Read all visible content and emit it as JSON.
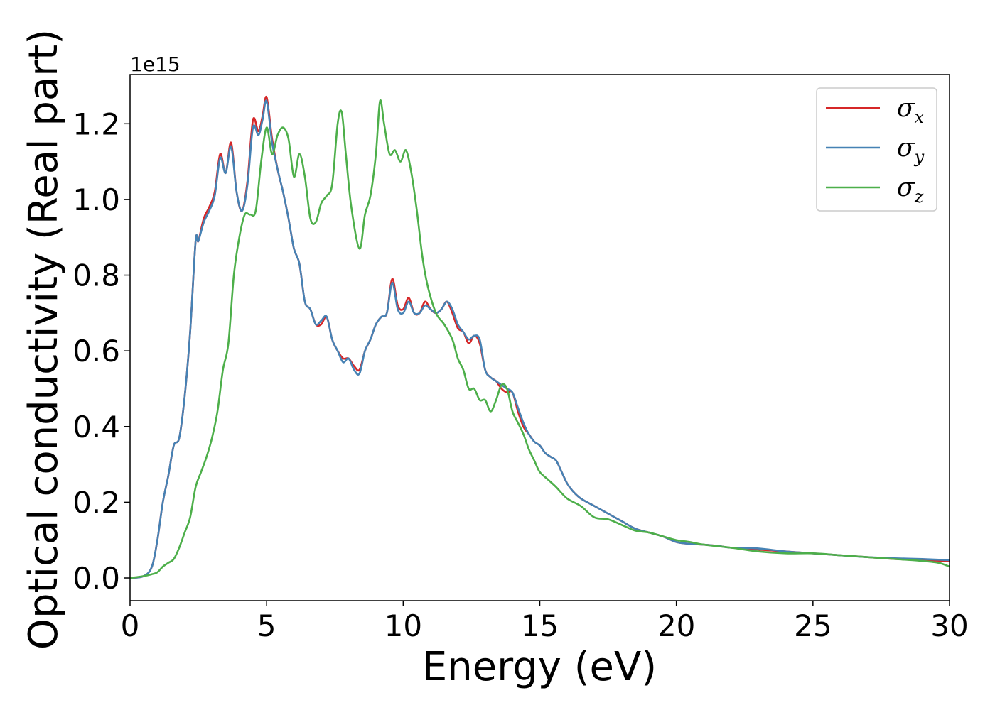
{
  "chart_data": {
    "type": "line",
    "title": "",
    "xlabel": "Energy (eV)",
    "ylabel": "Optical conductivity (Real part)",
    "y_offset_text": "1e15",
    "xlim": [
      0,
      30
    ],
    "ylim": [
      -0.06,
      1.33
    ],
    "x_ticks": [
      0,
      5,
      10,
      15,
      20,
      25,
      30
    ],
    "x_tick_labels": [
      "0",
      "5",
      "10",
      "15",
      "20",
      "25",
      "30"
    ],
    "y_ticks": [
      0.0,
      0.2,
      0.4,
      0.6,
      0.8,
      1.0,
      1.2
    ],
    "y_tick_labels": [
      "0.0",
      "0.2",
      "0.4",
      "0.6",
      "0.8",
      "1.0",
      "1.2"
    ],
    "grid": false,
    "legend_position": "top-right",
    "series": [
      {
        "name": "σx",
        "symbol": "σ",
        "subscript": "x",
        "color": "#d62728",
        "x": [
          0,
          0.5,
          0.8,
          1.0,
          1.2,
          1.4,
          1.6,
          1.8,
          2.0,
          2.2,
          2.4,
          2.5,
          2.7,
          2.9,
          3.1,
          3.3,
          3.5,
          3.7,
          3.9,
          4.1,
          4.3,
          4.5,
          4.7,
          4.85,
          5.0,
          5.2,
          5.4,
          5.6,
          5.8,
          6.0,
          6.2,
          6.4,
          6.6,
          6.8,
          7.0,
          7.2,
          7.4,
          7.6,
          7.8,
          8.0,
          8.2,
          8.4,
          8.6,
          8.8,
          9.0,
          9.2,
          9.4,
          9.6,
          9.8,
          10.0,
          10.2,
          10.4,
          10.6,
          10.8,
          11.0,
          11.2,
          11.4,
          11.6,
          11.8,
          12.0,
          12.2,
          12.4,
          12.6,
          12.8,
          13.0,
          13.2,
          13.4,
          13.6,
          13.8,
          14.0,
          14.2,
          14.4,
          14.6,
          14.8,
          15.0,
          15.2,
          15.4,
          15.6,
          15.8,
          16.0,
          16.2,
          16.5,
          17.0,
          17.5,
          18.0,
          18.5,
          19.0,
          19.5,
          20.0,
          20.5,
          21.0,
          21.5,
          22.0,
          23.0,
          24.0,
          25.0,
          26.0,
          27.0,
          28.0,
          29.0,
          30.0
        ],
        "y": [
          0,
          0.005,
          0.03,
          0.1,
          0.2,
          0.27,
          0.35,
          0.37,
          0.48,
          0.65,
          0.89,
          0.89,
          0.95,
          0.98,
          1.02,
          1.12,
          1.07,
          1.15,
          1.02,
          0.97,
          1.05,
          1.21,
          1.18,
          1.22,
          1.27,
          1.16,
          1.08,
          1.02,
          0.95,
          0.87,
          0.83,
          0.73,
          0.71,
          0.67,
          0.67,
          0.69,
          0.63,
          0.6,
          0.58,
          0.58,
          0.56,
          0.55,
          0.6,
          0.63,
          0.67,
          0.69,
          0.7,
          0.79,
          0.72,
          0.71,
          0.74,
          0.7,
          0.7,
          0.73,
          0.71,
          0.7,
          0.71,
          0.73,
          0.7,
          0.66,
          0.65,
          0.62,
          0.64,
          0.62,
          0.55,
          0.53,
          0.52,
          0.5,
          0.49,
          0.49,
          0.44,
          0.4,
          0.38,
          0.36,
          0.35,
          0.33,
          0.32,
          0.31,
          0.28,
          0.25,
          0.23,
          0.21,
          0.19,
          0.17,
          0.15,
          0.13,
          0.12,
          0.11,
          0.095,
          0.09,
          0.088,
          0.085,
          0.08,
          0.075,
          0.07,
          0.065,
          0.06,
          0.055,
          0.05,
          0.047,
          0.045
        ]
      },
      {
        "name": "σy",
        "symbol": "σ",
        "subscript": "y",
        "color": "#4682b4",
        "x": [
          0,
          0.5,
          0.8,
          1.0,
          1.2,
          1.4,
          1.6,
          1.8,
          2.0,
          2.2,
          2.4,
          2.5,
          2.7,
          2.9,
          3.1,
          3.3,
          3.5,
          3.7,
          3.9,
          4.1,
          4.3,
          4.5,
          4.7,
          4.85,
          5.0,
          5.2,
          5.4,
          5.6,
          5.8,
          6.0,
          6.2,
          6.4,
          6.6,
          6.8,
          7.0,
          7.2,
          7.4,
          7.6,
          7.8,
          8.0,
          8.2,
          8.4,
          8.6,
          8.8,
          9.0,
          9.2,
          9.4,
          9.6,
          9.8,
          10.0,
          10.2,
          10.4,
          10.6,
          10.8,
          11.0,
          11.2,
          11.4,
          11.6,
          11.8,
          12.0,
          12.2,
          12.4,
          12.6,
          12.8,
          13.0,
          13.2,
          13.4,
          13.6,
          13.8,
          14.0,
          14.2,
          14.4,
          14.6,
          14.8,
          15.0,
          15.2,
          15.4,
          15.6,
          15.8,
          16.0,
          16.2,
          16.5,
          17.0,
          17.5,
          18.0,
          18.5,
          19.0,
          19.5,
          20.0,
          20.5,
          21.0,
          21.5,
          22.0,
          23.0,
          24.0,
          25.0,
          26.0,
          27.0,
          28.0,
          29.0,
          30.0
        ],
        "y": [
          0,
          0.005,
          0.03,
          0.1,
          0.2,
          0.27,
          0.35,
          0.37,
          0.48,
          0.65,
          0.89,
          0.89,
          0.94,
          0.97,
          1.01,
          1.11,
          1.07,
          1.14,
          1.02,
          0.97,
          1.04,
          1.19,
          1.17,
          1.21,
          1.26,
          1.15,
          1.08,
          1.02,
          0.95,
          0.87,
          0.83,
          0.73,
          0.71,
          0.67,
          0.68,
          0.69,
          0.63,
          0.6,
          0.57,
          0.58,
          0.55,
          0.54,
          0.6,
          0.63,
          0.67,
          0.69,
          0.7,
          0.78,
          0.71,
          0.7,
          0.73,
          0.7,
          0.7,
          0.72,
          0.71,
          0.7,
          0.71,
          0.73,
          0.71,
          0.67,
          0.65,
          0.63,
          0.64,
          0.63,
          0.55,
          0.53,
          0.52,
          0.51,
          0.5,
          0.49,
          0.45,
          0.41,
          0.38,
          0.36,
          0.35,
          0.33,
          0.32,
          0.31,
          0.28,
          0.25,
          0.23,
          0.21,
          0.19,
          0.17,
          0.15,
          0.13,
          0.12,
          0.11,
          0.095,
          0.09,
          0.088,
          0.085,
          0.08,
          0.078,
          0.07,
          0.065,
          0.06,
          0.055,
          0.052,
          0.05,
          0.047
        ]
      },
      {
        "name": "σz",
        "symbol": "σ",
        "subscript": "z",
        "color": "#4daf4a",
        "x": [
          0,
          0.5,
          0.8,
          1.0,
          1.2,
          1.4,
          1.6,
          1.8,
          2.0,
          2.2,
          2.4,
          2.6,
          2.8,
          3.0,
          3.2,
          3.4,
          3.6,
          3.8,
          4.0,
          4.2,
          4.4,
          4.6,
          4.8,
          5.0,
          5.2,
          5.4,
          5.6,
          5.8,
          6.0,
          6.2,
          6.4,
          6.6,
          6.8,
          7.0,
          7.2,
          7.4,
          7.6,
          7.75,
          7.9,
          8.1,
          8.4,
          8.6,
          8.8,
          9.0,
          9.15,
          9.3,
          9.5,
          9.7,
          9.9,
          10.1,
          10.3,
          10.5,
          10.7,
          10.9,
          11.2,
          11.5,
          11.8,
          12.0,
          12.2,
          12.4,
          12.6,
          12.8,
          13.0,
          13.2,
          13.4,
          13.6,
          13.8,
          14.0,
          14.2,
          14.4,
          14.6,
          14.8,
          15.0,
          15.3,
          15.6,
          16.0,
          16.5,
          17.0,
          17.5,
          18.0,
          18.5,
          19.0,
          19.5,
          20.0,
          20.5,
          21.0,
          22.0,
          23.0,
          24.0,
          25.0,
          26.0,
          27.0,
          28.0,
          29.0,
          29.6,
          30.0
        ],
        "y": [
          0,
          0.005,
          0.01,
          0.015,
          0.03,
          0.04,
          0.05,
          0.08,
          0.12,
          0.16,
          0.24,
          0.28,
          0.32,
          0.37,
          0.44,
          0.55,
          0.62,
          0.8,
          0.9,
          0.96,
          0.96,
          0.97,
          1.1,
          1.19,
          1.12,
          1.17,
          1.19,
          1.16,
          1.06,
          1.12,
          1.06,
          0.95,
          0.94,
          0.99,
          1.01,
          1.04,
          1.2,
          1.23,
          1.12,
          0.98,
          0.87,
          0.96,
          1.01,
          1.12,
          1.26,
          1.2,
          1.12,
          1.13,
          1.1,
          1.13,
          1.07,
          0.97,
          0.85,
          0.77,
          0.7,
          0.67,
          0.63,
          0.58,
          0.55,
          0.5,
          0.5,
          0.47,
          0.47,
          0.44,
          0.47,
          0.51,
          0.5,
          0.44,
          0.41,
          0.38,
          0.34,
          0.31,
          0.28,
          0.26,
          0.24,
          0.21,
          0.19,
          0.16,
          0.155,
          0.14,
          0.125,
          0.12,
          0.11,
          0.1,
          0.095,
          0.088,
          0.08,
          0.07,
          0.065,
          0.065,
          0.06,
          0.055,
          0.05,
          0.045,
          0.04,
          0.03
        ]
      }
    ]
  }
}
